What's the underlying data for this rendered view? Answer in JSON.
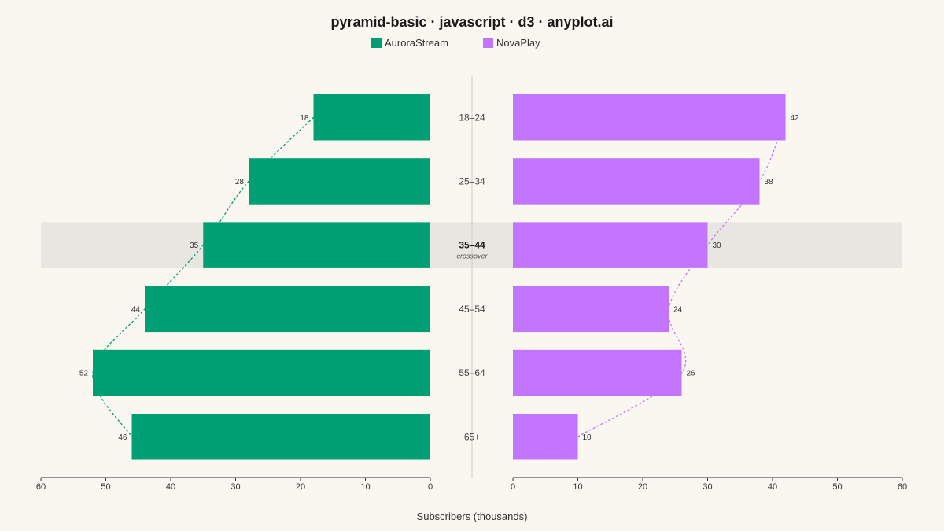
{
  "chart_data": {
    "type": "bar",
    "title": "pyramid-basic · javascript · d3 · anyplot.ai",
    "xlabel": "Subscribers (thousands)",
    "ylabel": "",
    "categories": [
      "18–24",
      "25–34",
      "35–44",
      "45–54",
      "55–64",
      "65+"
    ],
    "series": [
      {
        "name": "AuroraStream",
        "values": [
          18,
          28,
          35,
          44,
          52,
          46
        ],
        "color": "#009E73",
        "side": "left"
      },
      {
        "name": "NovaPlay",
        "values": [
          42,
          38,
          30,
          24,
          26,
          10
        ],
        "color": "#C375FF",
        "side": "right"
      }
    ],
    "xlim": [
      0,
      60
    ],
    "ticks": [
      0,
      10,
      20,
      30,
      40,
      50,
      60
    ],
    "highlight": {
      "category": "35–44",
      "note": "crossover",
      "color": "#E8E6E1"
    },
    "grid": false,
    "legend_position": "top-center"
  }
}
